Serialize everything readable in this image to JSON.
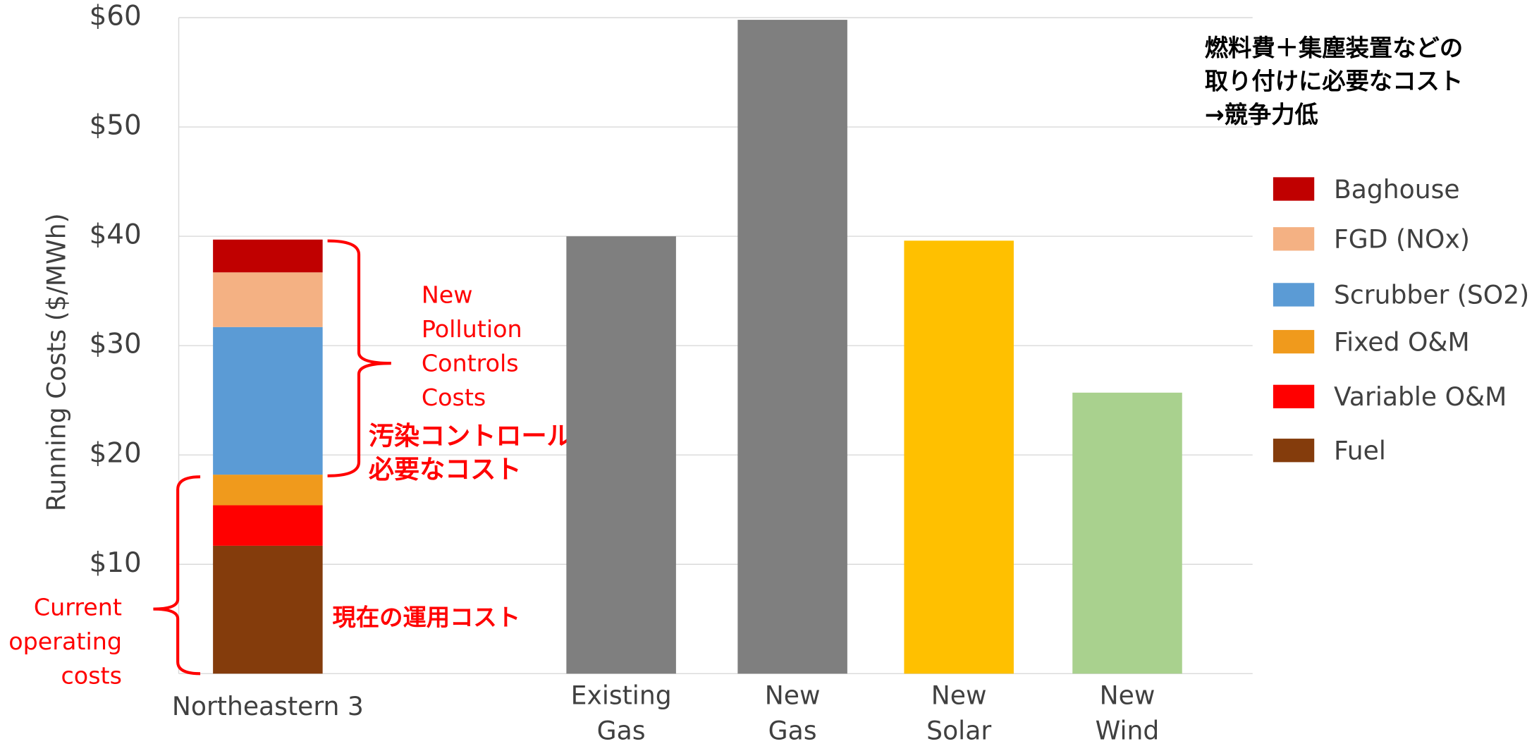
{
  "chart_data": {
    "type": "bar",
    "categories": [
      "Northeastern 3",
      "Existing\nGas",
      "New\nGas",
      "New\nSolar",
      "New\nWind"
    ],
    "y_label": "Running Costs ($/MWh)",
    "ylim": [
      0,
      60
    ],
    "yticks": [
      {
        "value": 10,
        "label": "$10"
      },
      {
        "value": 20,
        "label": "$20"
      },
      {
        "value": 30,
        "label": "$30"
      },
      {
        "value": 40,
        "label": "$40"
      },
      {
        "value": 50,
        "label": "$50"
      },
      {
        "value": 60,
        "label": "$60"
      }
    ],
    "grid": true,
    "stacked": true,
    "series": [
      {
        "name": "Fuel",
        "color": "#843c0c",
        "values": [
          11.7,
          null,
          null,
          null,
          null
        ]
      },
      {
        "name": "Variable O&M",
        "color": "#ff0000",
        "values": [
          3.7,
          null,
          null,
          null,
          null
        ]
      },
      {
        "name": "Fixed O&M",
        "color": "#f09a1c",
        "values": [
          2.8,
          null,
          null,
          null,
          null
        ]
      },
      {
        "name": "Scrubber (SO2)",
        "color": "#5b9bd5",
        "values": [
          13.5,
          null,
          null,
          null,
          null
        ]
      },
      {
        "name": "FGD (NOx)",
        "color": "#f4b183",
        "values": [
          5,
          null,
          null,
          null,
          null
        ]
      },
      {
        "name": "Baghouse",
        "color": "#c00000",
        "values": [
          3,
          null,
          null,
          null,
          null
        ]
      }
    ],
    "bars": {
      "values": [
        null,
        40,
        59.8,
        39.6,
        25.7
      ],
      "colors": [
        null,
        "#7f7f7f",
        "#7f7f7f",
        "#ffc000",
        "#a9d18e"
      ]
    },
    "legend": "right",
    "annotations": {
      "pollution_en": "New\nPollution\nControls\nCosts",
      "pollution_jp": "汚染コントロールに\n必要なコスト",
      "current_en": "Current\noperating\ncosts",
      "current_jp": "現在の運用コスト",
      "note_jp": "燃料費＋集塵装置などの\n取り付けに必要なコスト\n→競争力低"
    }
  }
}
